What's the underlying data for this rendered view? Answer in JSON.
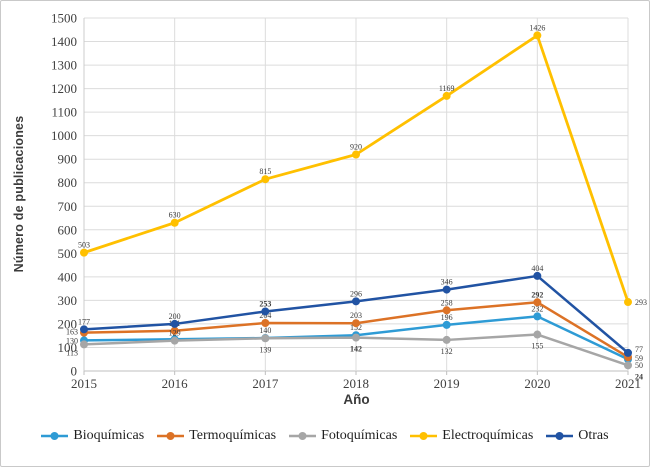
{
  "window": {
    "background": "#ffffff",
    "border_color": "#c9c9c9"
  },
  "chart_data": {
    "type": "line",
    "title": "",
    "xlabel": "Año",
    "ylabel": "Número de publicaciones",
    "x": [
      2015,
      2016,
      2017,
      2018,
      2019,
      2020,
      2021
    ],
    "ylim": [
      0,
      1500
    ],
    "ytick_step": 100,
    "grid": true,
    "legend_position": "bottom",
    "series": [
      {
        "name": "Bioquímicas",
        "color": "#2E9BD5",
        "values": [
          130,
          135,
          140,
          152,
          196,
          232,
          50
        ],
        "labels": [
          "130",
          null,
          "140",
          "152",
          "196",
          "232",
          "50"
        ]
      },
      {
        "name": "Termoquímicas",
        "color": "#DC7226",
        "values": [
          163,
          171,
          204,
          203,
          258,
          292,
          59
        ],
        "labels": [
          "163",
          "171",
          "204",
          "203",
          "258",
          "292",
          "59"
        ]
      },
      {
        "name": "Fotoquímicas",
        "color": "#A6A6A6",
        "values": [
          113,
          129,
          139,
          142,
          132,
          155,
          24
        ],
        "labels": [
          "113",
          "129",
          "139",
          "142",
          "132",
          "155",
          "24"
        ]
      },
      {
        "name": "Electroquímicas",
        "color": "#FFC000",
        "values": [
          503,
          630,
          815,
          920,
          1169,
          1426,
          293
        ],
        "labels": [
          "503",
          "630",
          "815",
          "920",
          "1169",
          "1426",
          "293"
        ]
      },
      {
        "name": "Otras",
        "color": "#2153A3",
        "values": [
          177,
          200,
          253,
          296,
          346,
          404,
          77
        ],
        "labels": [
          "177",
          "200",
          "253",
          "296",
          "346",
          "404",
          "77"
        ]
      }
    ],
    "bold_labels": [
      [
        "Otras",
        2
      ],
      [
        "Fotoquímicas",
        3
      ],
      [
        "Termoquímicas",
        5
      ],
      [
        "Fotoquímicas",
        6
      ]
    ],
    "colors": {
      "gridline": "#dcdcdc",
      "axis": "#bfbfbf",
      "tick_text": "#404040",
      "data_label_text": "#3d3d3d"
    }
  }
}
